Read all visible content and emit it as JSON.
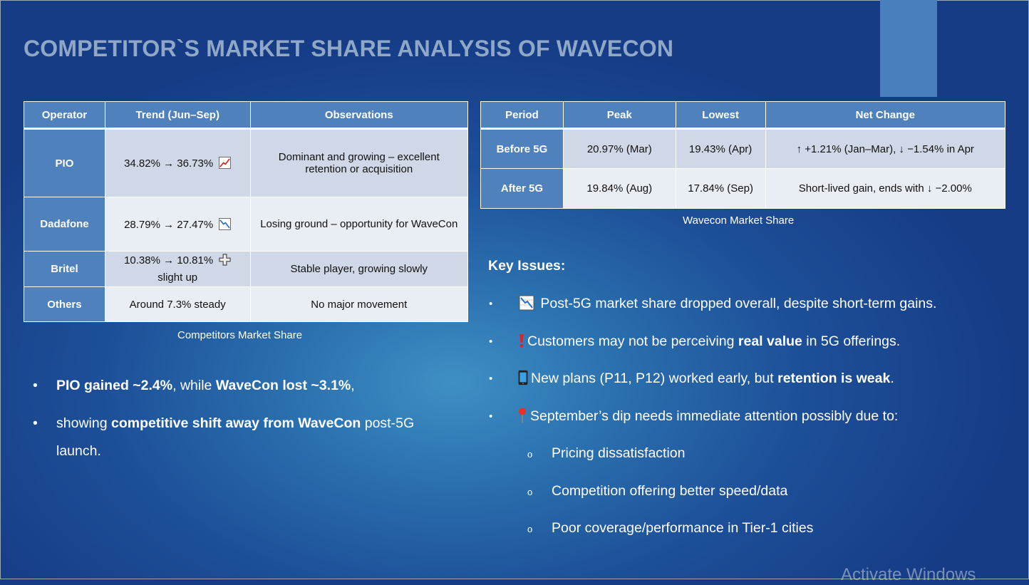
{
  "title": "COMPETITOR`S MARKET SHARE ANALYSIS OF WAVECON",
  "competitors_table": {
    "headers": [
      "Operator",
      "Trend (Jun–Sep)",
      "Observations"
    ],
    "rows": [
      {
        "operator": "PIO",
        "trend": "34.82% → 36.73%",
        "trend_icon": "chart-increasing-icon",
        "observation": "Dominant and growing – excellent retention or acquisition"
      },
      {
        "operator": "Dadafone",
        "trend": "28.79% → 27.47%",
        "trend_icon": "chart-decreasing-icon",
        "observation": "Losing ground – opportunity for WaveCon"
      },
      {
        "operator": "Britel",
        "trend": "10.38% → 10.81%",
        "trend_suffix": "slight up",
        "trend_icon": "plus-icon",
        "observation": "Stable player, growing slowly"
      },
      {
        "operator": "Others",
        "trend": "Around 7.3% steady",
        "observation": "No major movement"
      }
    ],
    "caption": "Competitors Market Share"
  },
  "wavecon_table": {
    "headers": [
      "Period",
      "Peak",
      "Lowest",
      "Net Change"
    ],
    "rows": [
      {
        "period": "Before 5G",
        "peak": "20.97% (Mar)",
        "lowest": "19.43% (Apr)",
        "net_change": "↑ +1.21% (Jan–Mar), ↓ −1.54% in Apr"
      },
      {
        "period": "After 5G",
        "peak": "19.84% (Aug)",
        "lowest": "17.84% (Sep)",
        "net_change": "Short-lived gain, ends with ↓ −2.00%"
      }
    ],
    "caption": "Wavecon Market Share"
  },
  "summary_bullets": [
    {
      "b1": "PIO gained ~2.4%",
      "t1": ", while ",
      "b2": "WaveCon lost ~3.1%",
      "t2": ","
    },
    {
      "t1": "showing ",
      "b1": "competitive shift away from WaveCon",
      "t2": " post-5G launch."
    }
  ],
  "key_issues": {
    "title": "Key Issues:",
    "items": [
      {
        "icon": "chart-decreasing-icon",
        "text": "Post-5G market share dropped overall, despite short-term gains."
      },
      {
        "icon": "exclamation-icon",
        "t1": "Customers may not be perceiving ",
        "b1": "real value",
        "t2": " in 5G offerings."
      },
      {
        "icon": "mobile-phone-icon",
        "t1": "New plans (P11, P12) worked early, but ",
        "b1": "retention is weak",
        "t2": "."
      },
      {
        "icon": "pushpin-icon",
        "text": "September’s dip needs immediate attention  possibly due to:"
      }
    ],
    "sub_items": [
      "Pricing dissatisfaction",
      "Competition offering better speed/data",
      "Poor coverage/performance in Tier-1 cities"
    ]
  },
  "bullet_char": "•",
  "sub_bullet_char": "o",
  "watermark": "Activate Windows",
  "colors": {
    "table_header": "#4f81bd",
    "row_odd": "#d0d8e8",
    "row_even": "#e9edf4",
    "title": "#8fa8c8"
  }
}
